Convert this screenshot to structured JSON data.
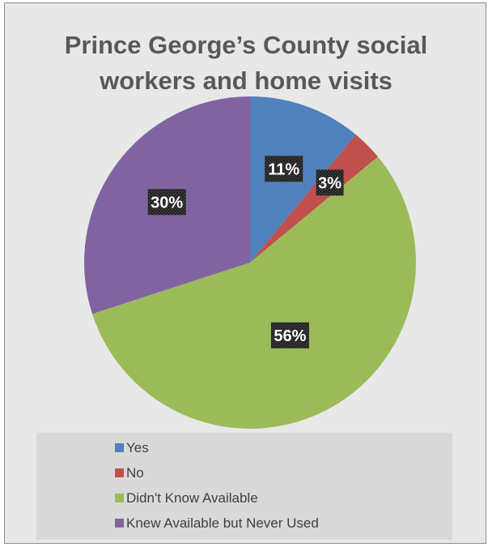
{
  "chart_data": {
    "type": "pie",
    "title": "Prince George’s County social workers and home visits",
    "title_lines": [
      "Prince George’s County social",
      "workers and home visits"
    ],
    "categories": [
      "Yes",
      "No",
      "Didn't Know Available",
      "Knew Available but Never Used"
    ],
    "values": [
      11,
      3,
      56,
      30
    ],
    "data_labels": [
      "11%",
      "3%",
      "56%",
      "30%"
    ],
    "colors": [
      "#4f81bd",
      "#c0504d",
      "#9bbb59",
      "#8064a2"
    ],
    "legend_position": "bottom"
  }
}
